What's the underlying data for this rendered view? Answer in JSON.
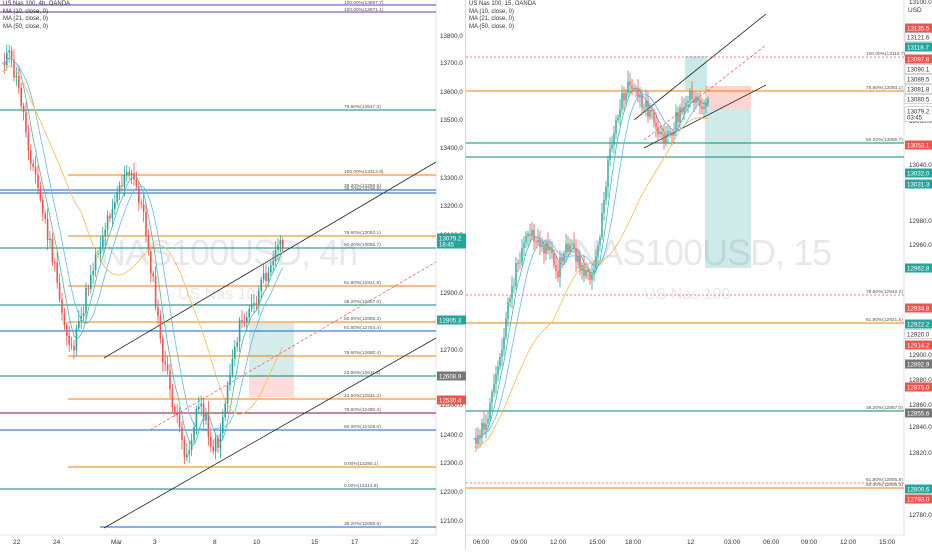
{
  "left_chart": {
    "title": "US Nas 100, 4h, OANDA",
    "indicators": [
      "MA (10, close, 0)",
      "MA (21, close, 0)",
      "MA (50, close, 0)"
    ],
    "watermark_symbol": "NAS100USD, 4h",
    "watermark_name": "US Nas 100",
    "price_axis": [
      "13800.0",
      "13700.0",
      "13600.0",
      "13500.0",
      "13400.0",
      "13300.0",
      "13200.0",
      "13100.0",
      "12900.0",
      "12800.0",
      "12700.0",
      "12600.0",
      "12500.0",
      "12400.0",
      "12300.0",
      "12200.0",
      "12100.0"
    ],
    "time_axis": [
      "22",
      "24",
      "Mar",
      "3",
      "8",
      "10",
      "15",
      "17",
      "22"
    ],
    "price_badges": [
      {
        "label": "13079.2",
        "sub": "18:45",
        "color": "#26a69a"
      },
      {
        "label": "12805.3",
        "color": "#26a69a"
      },
      {
        "label": "12608.9",
        "color": "#777777"
      },
      {
        "label": "12530.4",
        "color": "#ef5350"
      }
    ],
    "fib_labels": [
      "100.00%(13897.7)",
      "100.00%(13871.1)",
      "78.60%(13537.3)",
      "100.00%(13312.8)",
      "38.20%(13256.6)",
      "38.20%(13256.6)",
      "78.60%(13093.1)",
      "50.00%(13055.7)",
      "61.80%(12921.5)",
      "38.20%(12857.0)",
      "50.00%(12805.3)",
      "61.80%(12764.4)",
      "78.60%(12680.4)",
      "23.60%(12611.2)",
      "23.60%(12531.2)",
      "78.60%(12480.4)",
      "50.00%(12425.0)",
      "0.00%(12290.1)",
      "0.00%(12213.8)",
      "38.20%(12085.6)"
    ]
  },
  "right_chart": {
    "title": "US Nas 100, 15, OANDA",
    "indicators": [
      "MA (10, close, 0)",
      "MA (21, close, 0)",
      "MA (50, close, 0)"
    ],
    "currency": "USD",
    "watermark_symbol": "NAS100USD, 15",
    "watermark_name": "US Nas 100",
    "price_axis": [
      "13100.0",
      "13000.0",
      "12980.0",
      "12960.0",
      "12940.0",
      "12900.0",
      "12880.0",
      "12860.0",
      "12840.0",
      "12820.0",
      "12780.0",
      "13060.0",
      "13040.0"
    ],
    "time_axis": [
      "06:00",
      "09:00",
      "12:00",
      "15:00",
      "18:00",
      "12",
      "03:00",
      "06:00",
      "09:00",
      "12:00",
      "15:00"
    ],
    "price_badges": [
      {
        "label": "13135.5",
        "color": "#ef5350"
      },
      {
        "label": "13121.6",
        "color": "#ffffff",
        "text": "#333333"
      },
      {
        "label": "13118.7",
        "color": "#26a69a"
      },
      {
        "label": "13097.8",
        "color": "#ef5350"
      },
      {
        "label": "13090.1",
        "color": "#ffffff",
        "text": "#333333"
      },
      {
        "label": "13089.5",
        "color": "#ffffff",
        "text": "#333333"
      },
      {
        "label": "13081.8",
        "color": "#ffffff",
        "text": "#333333"
      },
      {
        "label": "13080.5",
        "color": "#ffffff",
        "text": "#333333"
      },
      {
        "label": "13079.2",
        "sub": "03:45",
        "color": "#ffffff",
        "text": "#333333"
      },
      {
        "label": "13053.1",
        "color": "#ef5350"
      },
      {
        "label": "13032.0",
        "color": "#26a69a"
      },
      {
        "label": "13031.3",
        "color": "#26a69a"
      },
      {
        "label": "12962.8",
        "color": "#26a69a"
      },
      {
        "label": "12934.8",
        "color": "#ef5350"
      },
      {
        "label": "12922.2",
        "color": "#26a69a"
      },
      {
        "label": "12920.0",
        "color": "#ffffff",
        "text": "#333333"
      },
      {
        "label": "12914.2",
        "color": "#ef5350"
      },
      {
        "label": "12892.9",
        "color": "#777777"
      },
      {
        "label": "12875.0",
        "color": "#ef5350"
      },
      {
        "label": "12855.6",
        "color": "#777777"
      },
      {
        "label": "12800.6",
        "color": "#26a69a"
      },
      {
        "label": "12793.0",
        "color": "#ef5350"
      }
    ],
    "fib_labels": [
      "100.00%(13118.7)",
      "78.60%(13093.1)",
      "50.00%(13055.7)",
      "78.60%(12942.2)",
      "61.80%(12921.5)",
      "38.20%(12857.0)",
      "61.80%(12805.8)",
      "50.00%(12805.3)"
    ]
  }
}
